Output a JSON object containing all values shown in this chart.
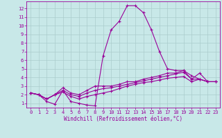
{
  "xlabel": "Windchill (Refroidissement éolien,°C)",
  "bg_color": "#c8e8e8",
  "line_color": "#990099",
  "grid_color": "#aacccc",
  "spine_color": "#7799aa",
  "xlim": [
    -0.5,
    23.5
  ],
  "ylim": [
    0.5,
    12.8
  ],
  "xticks": [
    0,
    1,
    2,
    3,
    4,
    5,
    6,
    7,
    8,
    9,
    10,
    11,
    12,
    13,
    14,
    15,
    16,
    17,
    18,
    19,
    20,
    21,
    22,
    23
  ],
  "yticks": [
    1,
    2,
    3,
    4,
    5,
    6,
    7,
    8,
    9,
    10,
    11,
    12
  ],
  "series": [
    [
      2.2,
      2.0,
      1.2,
      0.9,
      2.5,
      1.2,
      1.0,
      0.8,
      0.7,
      6.5,
      9.5,
      10.5,
      12.3,
      12.3,
      11.5,
      9.5,
      7.0,
      5.0,
      4.8,
      4.8,
      3.8,
      4.5,
      3.5,
      3.5
    ],
    [
      2.2,
      2.0,
      1.5,
      2.0,
      2.8,
      2.2,
      2.0,
      2.5,
      3.0,
      3.0,
      3.0,
      3.2,
      3.5,
      3.5,
      3.8,
      4.0,
      4.2,
      4.5,
      4.5,
      4.8,
      4.2,
      3.8,
      3.5,
      3.5
    ],
    [
      2.2,
      2.0,
      1.5,
      2.0,
      2.5,
      2.0,
      1.8,
      2.2,
      2.5,
      2.7,
      2.8,
      3.0,
      3.2,
      3.4,
      3.6,
      3.8,
      4.0,
      4.2,
      4.4,
      4.6,
      3.8,
      3.8,
      3.5,
      3.5
    ],
    [
      2.2,
      2.0,
      1.5,
      2.0,
      2.3,
      1.8,
      1.5,
      1.8,
      2.0,
      2.2,
      2.4,
      2.7,
      3.0,
      3.2,
      3.4,
      3.5,
      3.7,
      3.9,
      4.0,
      4.1,
      3.5,
      3.8,
      3.5,
      3.5
    ]
  ],
  "xlabel_fontsize": 5.5,
  "tick_fontsize": 5.0,
  "linewidth": 0.8,
  "markersize": 2.5,
  "marker": "+"
}
